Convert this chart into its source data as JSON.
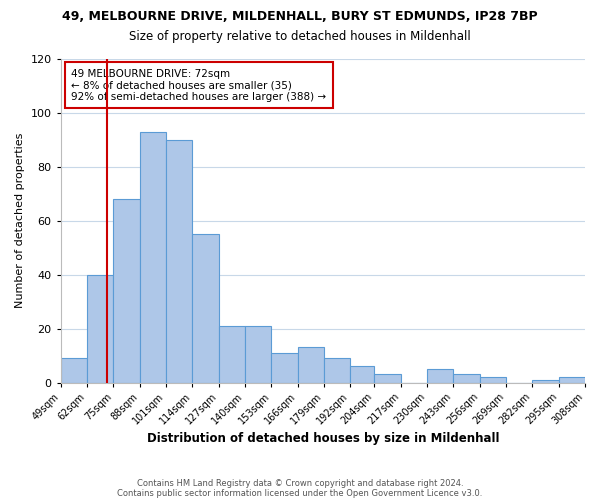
{
  "title": "49, MELBOURNE DRIVE, MILDENHALL, BURY ST EDMUNDS, IP28 7BP",
  "subtitle": "Size of property relative to detached houses in Mildenhall",
  "xlabel": "Distribution of detached houses by size in Mildenhall",
  "ylabel": "Number of detached properties",
  "bar_lefts": [
    49,
    62,
    75,
    88,
    101,
    114,
    127,
    140,
    153,
    166,
    179,
    192,
    204,
    217,
    230,
    243,
    256,
    269,
    282,
    295
  ],
  "bar_rights": [
    62,
    75,
    88,
    101,
    114,
    127,
    140,
    153,
    166,
    179,
    192,
    204,
    217,
    230,
    243,
    256,
    269,
    282,
    295,
    308
  ],
  "bar_heights": [
    9,
    40,
    68,
    93,
    90,
    55,
    21,
    21,
    11,
    13,
    9,
    6,
    3,
    0,
    5,
    3,
    2,
    0,
    1,
    2
  ],
  "bar_color": "#aec7e8",
  "bar_edge_color": "#5b9bd5",
  "property_line_x": 72,
  "property_line_color": "#cc0000",
  "ylim": [
    0,
    120
  ],
  "annotation_text": "49 MELBOURNE DRIVE: 72sqm\n← 8% of detached houses are smaller (35)\n92% of semi-detached houses are larger (388) →",
  "annotation_box_color": "#ffffff",
  "annotation_box_edge": "#cc0000",
  "footer1": "Contains HM Land Registry data © Crown copyright and database right 2024.",
  "footer2": "Contains public sector information licensed under the Open Government Licence v3.0.",
  "tick_labels": [
    "49sqm",
    "62sqm",
    "75sqm",
    "88sqm",
    "101sqm",
    "114sqm",
    "127sqm",
    "140sqm",
    "153sqm",
    "166sqm",
    "179sqm",
    "192sqm",
    "204sqm",
    "217sqm",
    "230sqm",
    "243sqm",
    "256sqm",
    "269sqm",
    "282sqm",
    "295sqm",
    "308sqm"
  ],
  "xtick_positions": [
    49,
    62,
    75,
    88,
    101,
    114,
    127,
    140,
    153,
    166,
    179,
    192,
    204,
    217,
    230,
    243,
    256,
    269,
    282,
    295,
    308
  ],
  "yticks": [
    0,
    20,
    40,
    60,
    80,
    100,
    120
  ]
}
